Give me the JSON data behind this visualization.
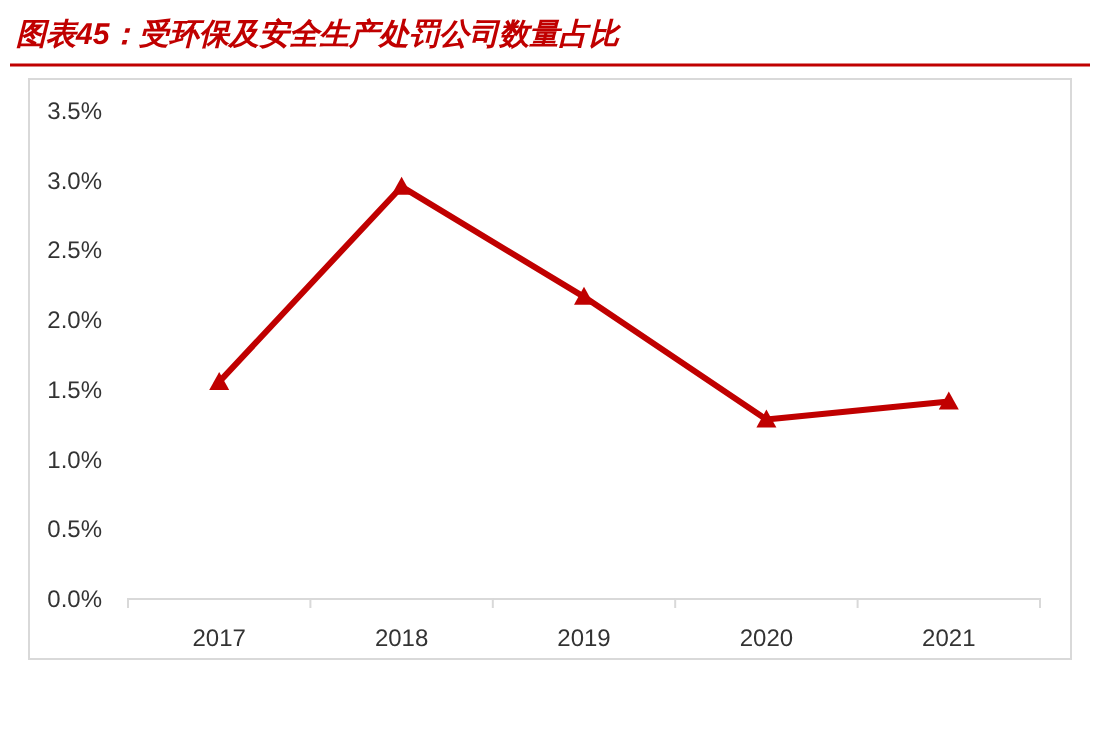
{
  "chart_data": {
    "type": "line",
    "title": "图表45：受环保及安全生产处罚公司数量占比",
    "categories": [
      "2017",
      "2018",
      "2019",
      "2020",
      "2021"
    ],
    "series": [
      {
        "color": "#c00000",
        "values": [
          1.55,
          2.95,
          2.16,
          1.28,
          1.41
        ]
      }
    ],
    "ylim": [
      0,
      3.5
    ],
    "yticks": [
      {
        "value": 0,
        "label": "0.0%"
      },
      {
        "value": 0.5,
        "label": "0.5%"
      },
      {
        "value": 1,
        "label": "1.0%"
      },
      {
        "value": 1.5,
        "label": "1.5%"
      },
      {
        "value": 2,
        "label": "2.0%"
      },
      {
        "value": 2.5,
        "label": "2.5%"
      },
      {
        "value": 3,
        "label": "3.0%"
      },
      {
        "value": 3.5,
        "label": "3.5%"
      }
    ],
    "marker": "triangle",
    "line_style": "solid",
    "grid": false
  }
}
